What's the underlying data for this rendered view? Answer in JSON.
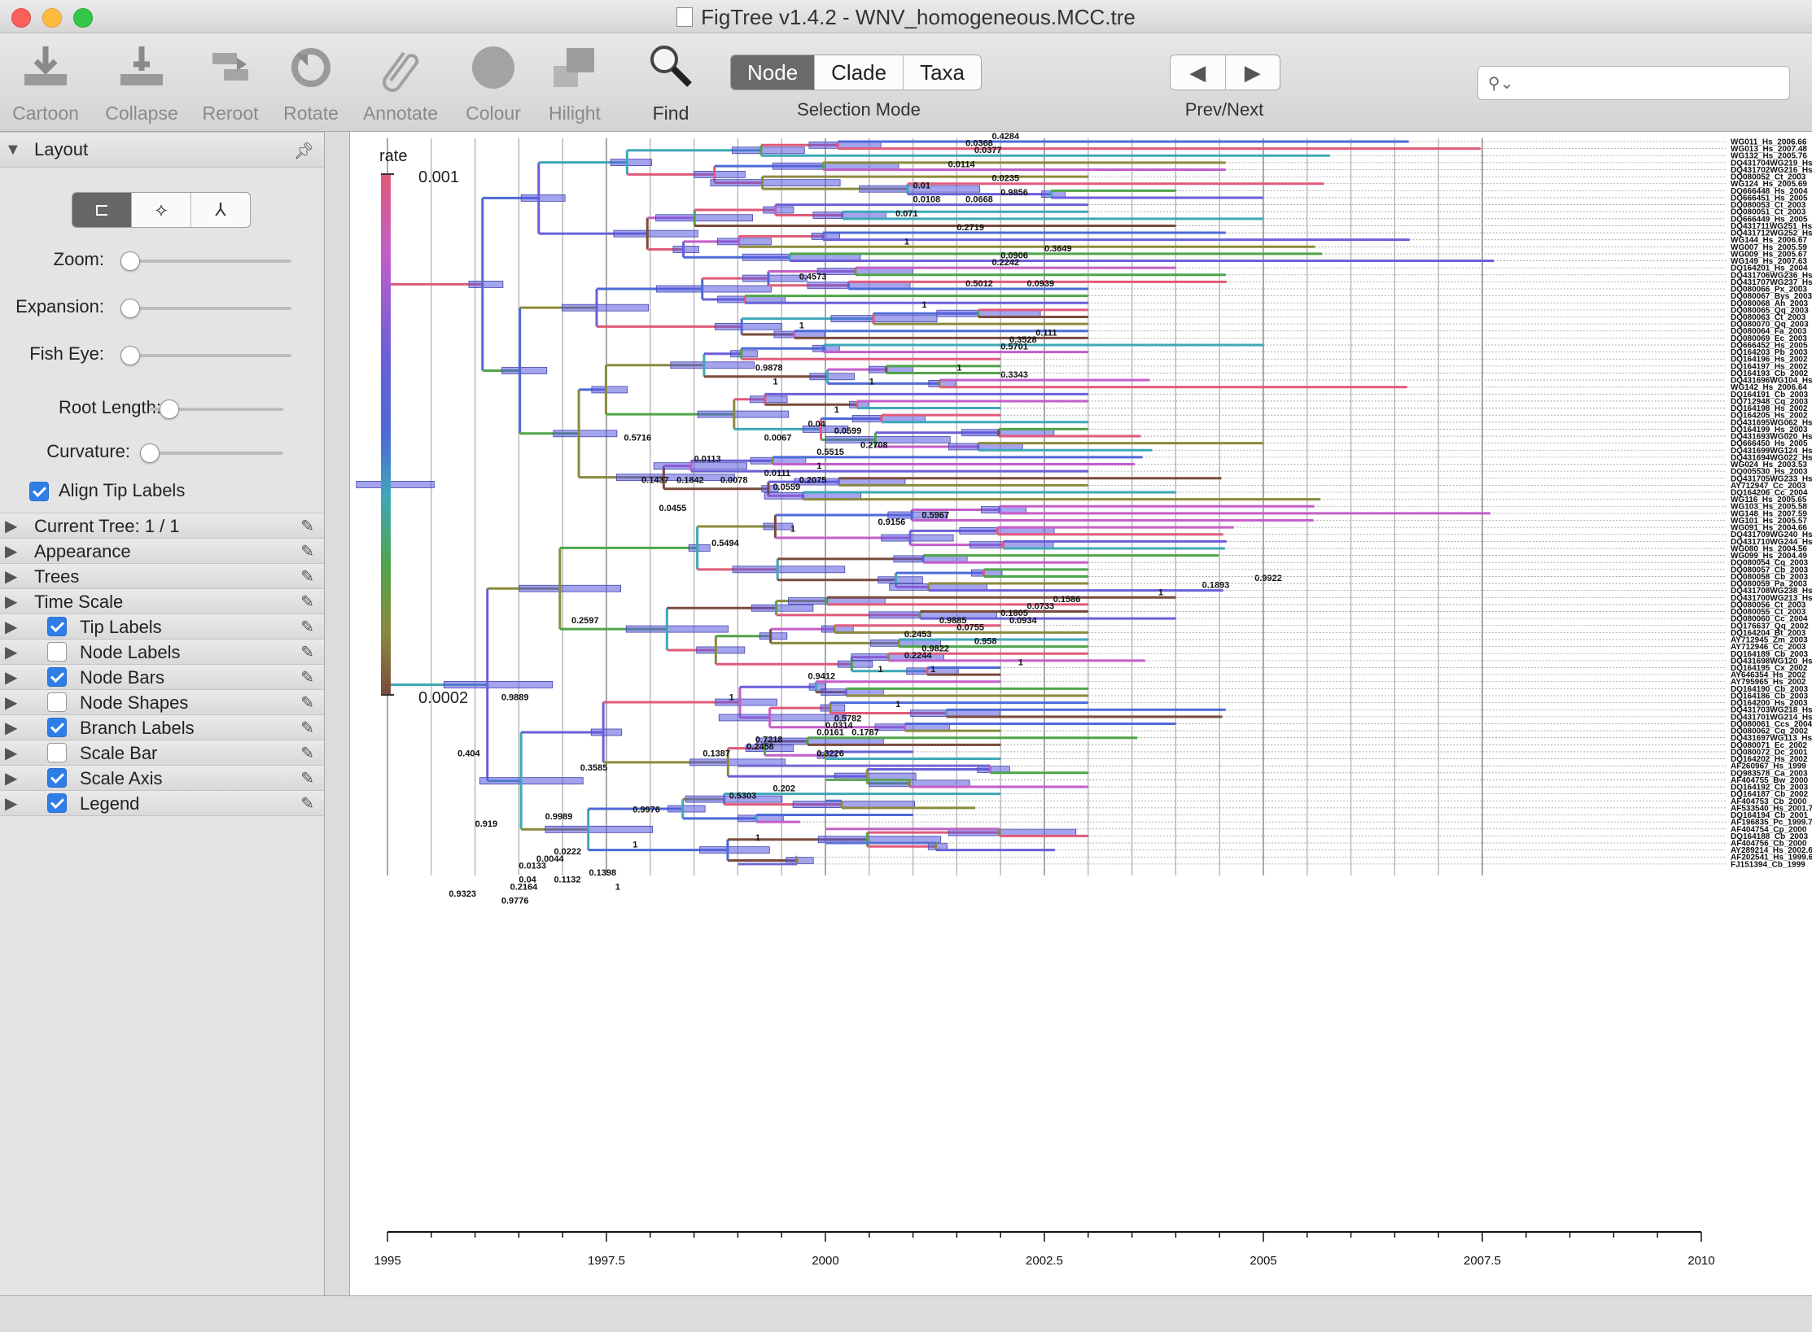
{
  "window": {
    "title": "FigTree v1.4.2 - WNV_homogeneous.MCC.tre"
  },
  "toolbar": {
    "tools": [
      {
        "label": "Cartoon",
        "icon": "cartoon-icon"
      },
      {
        "label": "Collapse",
        "icon": "collapse-icon"
      },
      {
        "label": "Reroot",
        "icon": "reroot-icon"
      },
      {
        "label": "Rotate",
        "icon": "rotate-icon"
      },
      {
        "label": "Annotate",
        "icon": "annotate-icon"
      },
      {
        "label": "Colour",
        "icon": "colour-icon"
      },
      {
        "label": "Hilight",
        "icon": "hilight-icon"
      },
      {
        "label": "Find",
        "icon": "find-icon"
      }
    ],
    "selection_mode": {
      "label": "Selection Mode",
      "options": [
        "Node",
        "Clade",
        "Taxa"
      ],
      "selected": "Node"
    },
    "prev_next": {
      "label": "Prev/Next",
      "prev": "◀",
      "next": "▶"
    },
    "search": {
      "placeholder": "",
      "value": ""
    }
  },
  "sidebar": {
    "layout": {
      "title": "Layout",
      "layout_buttons": [
        "rectangular-layout-icon",
        "polar-layout-icon",
        "radial-layout-icon"
      ],
      "sliders": [
        {
          "label": "Zoom:",
          "value": 0
        },
        {
          "label": "Expansion:",
          "value": 0
        },
        {
          "label": "Fish Eye:",
          "value": 0
        },
        {
          "label": "Root Length:",
          "value": 0.15
        },
        {
          "label": "Curvature:",
          "value": 0
        }
      ],
      "align_tip_labels": {
        "label": "Align Tip Labels",
        "checked": true
      }
    },
    "sections": [
      {
        "label": "Current Tree: 1 / 1",
        "checkbox": null
      },
      {
        "label": "Appearance",
        "checkbox": null
      },
      {
        "label": "Trees",
        "checkbox": null
      },
      {
        "label": "Time Scale",
        "checkbox": null
      },
      {
        "label": "Tip Labels",
        "checkbox": true
      },
      {
        "label": "Node Labels",
        "checkbox": false
      },
      {
        "label": "Node Bars",
        "checkbox": true
      },
      {
        "label": "Node Shapes",
        "checkbox": false
      },
      {
        "label": "Branch Labels",
        "checkbox": true
      },
      {
        "label": "Scale Bar",
        "checkbox": false
      },
      {
        "label": "Scale Axis",
        "checkbox": true
      },
      {
        "label": "Legend",
        "checkbox": true
      }
    ]
  },
  "legend": {
    "title": "rate",
    "max": "0.001",
    "min": "0.0002",
    "colors": [
      "#e05a7a",
      "#c35ec8",
      "#6a5fd8",
      "#4d6ad8",
      "#3fa7b8",
      "#4fa44a",
      "#8a8a3e",
      "#7a4a3e"
    ]
  },
  "axis": {
    "ticks": [
      "1995",
      "1997.5",
      "2000",
      "2002.5",
      "2005",
      "2007.5",
      "2010"
    ],
    "tick_values": [
      1995,
      1997.5,
      2000,
      2002.5,
      2005,
      2007.5,
      2010
    ],
    "range": [
      1995,
      2010
    ]
  },
  "tree": {
    "tip_labels": [
      "WG011_Hs_2006.66",
      "WG013_Hs_2007.48",
      "WG132_Hs_2005.76",
      "DQ431704WG219_Hs_2004.57",
      "DQ431702WG216_Hs_2004.57",
      "DQ080052_Ct_2003",
      "WG124_Hs_2005.69",
      "DQ666448_Hs_2004",
      "DQ666451_Hs_2005",
      "DQ080053_Ct_2003",
      "DQ080051_Ct_2003",
      "DQ666449_Hs_2005",
      "DQ431711WG251_Hs_2004",
      "DQ431712WG252_Hs_2004.57",
      "WG144_Hs_2006.67",
      "WG007_Hs_2005.59",
      "WG009_Hs_2005.67",
      "WG149_Hs_2007.63",
      "DQ164201_Hs_2004",
      "DQ431706WG236_Hs_2004.57",
      "DQ431707WG237_Hs_2004.58",
      "DQ080066_Px_2003",
      "DQ080067_Bys_2003",
      "DQ080068_Ah_2003",
      "DQ080065_Qq_2003",
      "DQ080063_Ct_2003",
      "DQ080070_Qq_2003",
      "DQ080064_Fa_2003",
      "DQ080069_Ec_2003",
      "DQ666452_Hs_2005",
      "DQ164203_Pb_2003",
      "DQ164196_Hs_2002",
      "DQ164197_Hs_2002",
      "DQ164193_Cb_2002",
      "DQ431696WG104_Hs_2003.70",
      "WG142_Hs_2006.64",
      "DQ164191_Cb_2003",
      "DQ712948_Cq_2003",
      "DQ164198_Hs_2002",
      "DQ164205_Hs_2002",
      "DQ431695WG062_Hs_2003",
      "DQ164199_Hs_2003",
      "DQ431693WG020_Hs_2003.60",
      "DQ666450_Hs_2005",
      "DQ431699WG124_Hs_2003.73",
      "DQ431694WG022_Hs_2003.62",
      "WG024_Hs_2003.53",
      "DQ005530_Hs_2003",
      "DQ431705WG233_Hs_2004.52",
      "AY712947_Cc_2003",
      "DQ164206_Cc_2004",
      "WG116_Hs_2005.65",
      "WG103_Hs_2005.58",
      "WG148_Hs_2007.59",
      "WG101_Hs_2005.57",
      "WG091_Hs_2004.66",
      "DQ431709WG240_Hs_2004.54",
      "DQ431710WG244_Hs_2004.58",
      "WG080_Hs_2004.56",
      "WG099_Hs_2004.49",
      "DQ080054_Cq_2003",
      "DQ080057_Cb_2003",
      "DQ080058_Cb_2003",
      "DQ080059_Pa_2003",
      "DQ431708WG238_Hs_2004.54",
      "DQ431700WG213_Hs_2004",
      "DQ080056_Ct_2003",
      "DQ080055_Ct_2003",
      "DQ080060_Cc_2004",
      "DQ176637_Qq_2002",
      "DQ164204_Bt_2003",
      "AY712945_Zm_2003",
      "AY712946_Cc_2003",
      "DQ164189_Cb_2003",
      "DQ431698WG120_Hs_2003.65",
      "DQ164195_Cx_2002",
      "AY646354_Hs_2002",
      "AY795965_Hs_2002",
      "DQ164190_Cb_2003",
      "DQ164186_Cb_2003",
      "DQ164200_Hs_2003",
      "DQ431703WG218_Hs_2004.57",
      "DQ431701WG214_Hs_2004.53",
      "DQ080061_Ccs_2004",
      "DQ080062_Cq_2002",
      "DQ431697WG113_Hs_2003.56",
      "DQ080071_Ec_2002",
      "DQ080072_Dc_2001",
      "DQ164202_Hs_2002",
      "AF260967_Hs_1999",
      "DQ983578_Ca_2003",
      "AF404755_Bw_2000",
      "DQ164192_Cb_2003",
      "DQ164187_Cb_2002",
      "AF404753_Cb_2000",
      "AF533540_Hs_2001.71",
      "DQ164194_Cb_2001",
      "AF196835_Pc_1999.71",
      "AF404754_Cp_2000",
      "DQ164188_Cb_2003",
      "AF404756_Cb_2000",
      "AY289214_Hs_2002.62",
      "AF202541_Hs_1999.66",
      "FJ151394_Cb_1999"
    ],
    "branch_labels": [
      {
        "text": "0.4284",
        "x": 2001.9,
        "row": 0
      },
      {
        "text": "0.0368",
        "x": 2001.6,
        "row": 1
      },
      {
        "text": "0.0377",
        "x": 2001.7,
        "row": 2
      },
      {
        "text": "0.0114",
        "x": 2001.4,
        "row": 4
      },
      {
        "text": "0.0235",
        "x": 2001.9,
        "row": 6
      },
      {
        "text": "0.01",
        "x": 2001.0,
        "row": 7
      },
      {
        "text": "0.9856",
        "x": 2002.0,
        "row": 8
      },
      {
        "text": "0.0108",
        "x": 2001.0,
        "row": 9
      },
      {
        "text": "0.0668",
        "x": 2001.6,
        "row": 9
      },
      {
        "text": "0.071",
        "x": 2000.8,
        "row": 11
      },
      {
        "text": "0.2719",
        "x": 2001.5,
        "row": 13
      },
      {
        "text": "1",
        "x": 2000.9,
        "row": 15
      },
      {
        "text": "0.3649",
        "x": 2002.5,
        "row": 16
      },
      {
        "text": "0.0906",
        "x": 2002.0,
        "row": 17
      },
      {
        "text": "0.2242",
        "x": 2001.9,
        "row": 18
      },
      {
        "text": "0.4573",
        "x": 1999.7,
        "row": 20
      },
      {
        "text": "0.5012",
        "x": 2001.6,
        "row": 21
      },
      {
        "text": "0.0939",
        "x": 2002.3,
        "row": 21
      },
      {
        "text": "1",
        "x": 2001.1,
        "row": 24
      },
      {
        "text": "1",
        "x": 1999.7,
        "row": 27
      },
      {
        "text": "0.111",
        "x": 2002.4,
        "row": 28
      },
      {
        "text": "0.3528",
        "x": 2002.1,
        "row": 29
      },
      {
        "text": "0.5701",
        "x": 2002.0,
        "row": 30
      },
      {
        "text": "0.9878",
        "x": 1999.2,
        "row": 33
      },
      {
        "text": "1",
        "x": 2001.5,
        "row": 33
      },
      {
        "text": "0.3343",
        "x": 2002.0,
        "row": 34
      },
      {
        "text": "1",
        "x": 1999.4,
        "row": 35
      },
      {
        "text": "1",
        "x": 2000.5,
        "row": 35
      },
      {
        "text": "1",
        "x": 2000.1,
        "row": 39
      },
      {
        "text": "0.04",
        "x": 1999.8,
        "row": 41
      },
      {
        "text": "0.0599",
        "x": 2000.1,
        "row": 42
      },
      {
        "text": "0.5716",
        "x": 1997.7,
        "row": 43
      },
      {
        "text": "0.0067",
        "x": 1999.3,
        "row": 43
      },
      {
        "text": "0.2708",
        "x": 2000.4,
        "row": 44
      },
      {
        "text": "0.5515",
        "x": 1999.9,
        "row": 45
      },
      {
        "text": "0.0113",
        "x": 1998.5,
        "row": 46
      },
      {
        "text": "1",
        "x": 1999.9,
        "row": 47
      },
      {
        "text": "0.0111",
        "x": 1999.3,
        "row": 48
      },
      {
        "text": "0.1437",
        "x": 1997.9,
        "row": 49
      },
      {
        "text": "0.1842",
        "x": 1998.3,
        "row": 49
      },
      {
        "text": "0.0078",
        "x": 1998.8,
        "row": 49
      },
      {
        "text": "0.2075",
        "x": 1999.7,
        "row": 49
      },
      {
        "text": "0.0559",
        "x": 1999.4,
        "row": 50
      },
      {
        "text": "0.0455",
        "x": 1998.1,
        "row": 53
      },
      {
        "text": "0.5967",
        "x": 2001.1,
        "row": 54
      },
      {
        "text": "0.9156",
        "x": 2000.6,
        "row": 55
      },
      {
        "text": "1",
        "x": 1999.6,
        "row": 56
      },
      {
        "text": "0.5494",
        "x": 1998.7,
        "row": 58
      },
      {
        "text": "0.9922",
        "x": 2004.9,
        "row": 63
      },
      {
        "text": "0.1893",
        "x": 2004.3,
        "row": 64
      },
      {
        "text": "1",
        "x": 2003.8,
        "row": 65
      },
      {
        "text": "0.1586",
        "x": 2002.6,
        "row": 66
      },
      {
        "text": "0.0733",
        "x": 2002.3,
        "row": 67
      },
      {
        "text": "0.1805",
        "x": 2002.0,
        "row": 68
      },
      {
        "text": "0.2597",
        "x": 1997.1,
        "row": 69
      },
      {
        "text": "0.9885",
        "x": 2001.3,
        "row": 69
      },
      {
        "text": "0.0934",
        "x": 2002.1,
        "row": 69
      },
      {
        "text": "0.0755",
        "x": 2001.5,
        "row": 70
      },
      {
        "text": "0.2453",
        "x": 2000.9,
        "row": 71
      },
      {
        "text": "0.958",
        "x": 2001.7,
        "row": 72
      },
      {
        "text": "0.9822",
        "x": 2001.1,
        "row": 73
      },
      {
        "text": "0.2244",
        "x": 2000.9,
        "row": 74
      },
      {
        "text": "1",
        "x": 2002.2,
        "row": 75
      },
      {
        "text": "1",
        "x": 2000.6,
        "row": 76
      },
      {
        "text": "1",
        "x": 2001.2,
        "row": 76
      },
      {
        "text": "0.9412",
        "x": 1999.8,
        "row": 77
      },
      {
        "text": "0.9889",
        "x": 1996.3,
        "row": 80
      },
      {
        "text": "1",
        "x": 1998.9,
        "row": 80
      },
      {
        "text": "1",
        "x": 2000.8,
        "row": 81
      },
      {
        "text": "0.5782",
        "x": 2000.1,
        "row": 83
      },
      {
        "text": "0.0314",
        "x": 2000.0,
        "row": 84
      },
      {
        "text": "0.0161",
        "x": 1999.9,
        "row": 85
      },
      {
        "text": "0.1787",
        "x": 2000.3,
        "row": 85
      },
      {
        "text": "0.7218",
        "x": 1999.2,
        "row": 86
      },
      {
        "text": "0.2458",
        "x": 1999.1,
        "row": 87
      },
      {
        "text": "0.404",
        "x": 1995.8,
        "row": 88
      },
      {
        "text": "0.1387",
        "x": 1998.6,
        "row": 88
      },
      {
        "text": "0.3226",
        "x": 1999.9,
        "row": 88
      },
      {
        "text": "0.3585",
        "x": 1997.2,
        "row": 90
      },
      {
        "text": "0.202",
        "x": 1999.4,
        "row": 93
      },
      {
        "text": "0.5303",
        "x": 1998.9,
        "row": 94
      },
      {
        "text": "0.9976",
        "x": 1997.8,
        "row": 96
      },
      {
        "text": "0.9989",
        "x": 1996.8,
        "row": 97
      },
      {
        "text": "0.919",
        "x": 1996.0,
        "row": 98
      },
      {
        "text": "1",
        "x": 1999.2,
        "row": 100
      },
      {
        "text": "1",
        "x": 1997.8,
        "row": 101
      },
      {
        "text": "0.0222",
        "x": 1996.9,
        "row": 102
      },
      {
        "text": "0.0044",
        "x": 1996.7,
        "row": 103
      },
      {
        "text": "0.0133",
        "x": 1996.5,
        "row": 104
      },
      {
        "text": "0.1398",
        "x": 1997.3,
        "row": 105
      },
      {
        "text": "0.04",
        "x": 1996.5,
        "row": 106
      },
      {
        "text": "0.1132",
        "x": 1996.9,
        "row": 106
      },
      {
        "text": "0.2164",
        "x": 1996.4,
        "row": 107
      },
      {
        "text": "1",
        "x": 1997.6,
        "row": 107
      },
      {
        "text": "0.9323",
        "x": 1995.7,
        "row": 108
      },
      {
        "text": "0.9776",
        "x": 1996.3,
        "row": 109
      }
    ]
  }
}
